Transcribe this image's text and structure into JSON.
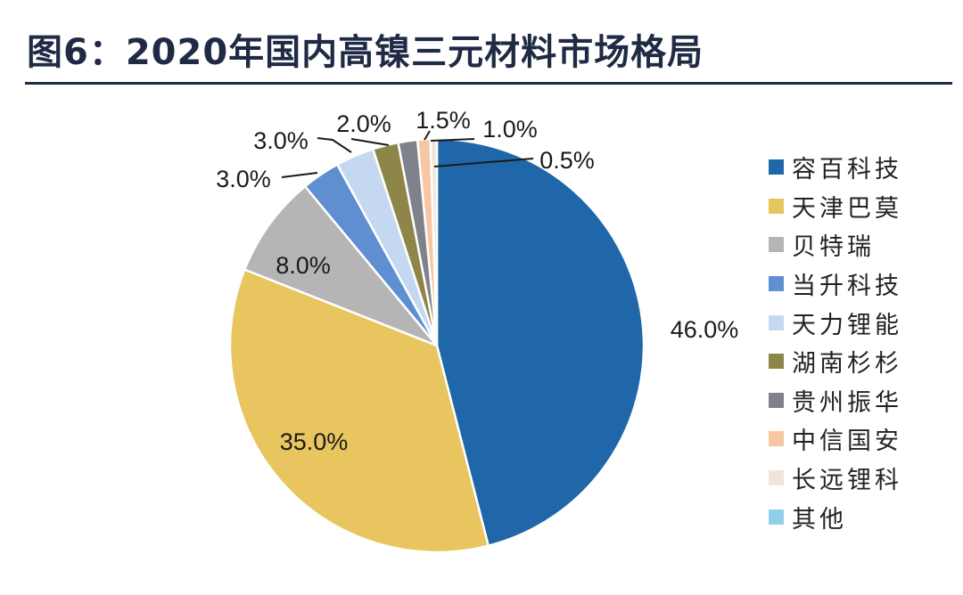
{
  "title": "图6：2020年国内高镍三元材料市场格局",
  "chart_data": {
    "type": "pie",
    "title": "图6：2020年国内高镍三元材料市场格局",
    "start_angle_deg": 0,
    "direction": "clockwise",
    "legend_position": "right",
    "slices": [
      {
        "label": "容百科技",
        "value": 46.0,
        "value_label": "46.0%",
        "color": "#1f67a8"
      },
      {
        "label": "天津巴莫",
        "value": 35.0,
        "value_label": "35.0%",
        "color": "#e8c55f"
      },
      {
        "label": "贝特瑞",
        "value": 8.0,
        "value_label": "8.0%",
        "color": "#b5b5b5"
      },
      {
        "label": "当升科技",
        "value": 3.0,
        "value_label": "3.0%",
        "color": "#5f8fd0"
      },
      {
        "label": "天力锂能",
        "value": 3.0,
        "value_label": "3.0%",
        "color": "#c5d8f2"
      },
      {
        "label": "湖南杉杉",
        "value": 2.0,
        "value_label": "2.0%",
        "color": "#8e8549"
      },
      {
        "label": "贵州振华",
        "value": 1.5,
        "value_label": "1.5%",
        "color": "#7f8288"
      },
      {
        "label": "中信国安",
        "value": 1.0,
        "value_label": "1.0%",
        "color": "#f6c7a2"
      },
      {
        "label": "长远锂科",
        "value": 0.5,
        "value_label": "0.5%",
        "color": "#efe5dc"
      },
      {
        "label": "其他",
        "value": 0.0,
        "value_label": "",
        "color": "#8fd0e8"
      }
    ]
  }
}
